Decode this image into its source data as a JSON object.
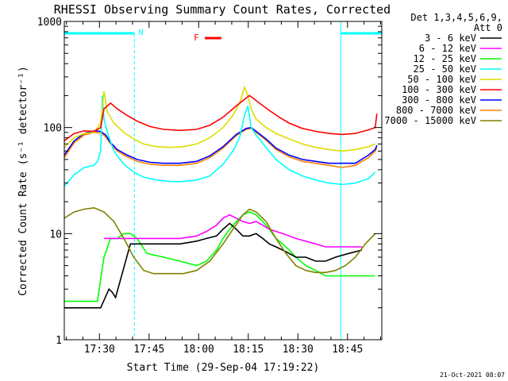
{
  "chart_data": {
    "type": "line",
    "title": "RHESSI Observing Summary Count Rates, Corrected",
    "xlabel": "Start Time (29-Sep-04 17:19:22)",
    "ylabel": "Corrected Count Rate (s⁻¹ detector⁻¹)",
    "yscale": "log",
    "ylim": [
      1,
      1000
    ],
    "xlim_minutes_from_start": [
      0,
      96
    ],
    "x_tick_labels": [
      "17:30",
      "17:45",
      "18:00",
      "18:15",
      "18:30",
      "18:45"
    ],
    "x_ticks_minutes_from_start": [
      10.63,
      25.63,
      40.63,
      55.63,
      70.63,
      85.63
    ],
    "y_tick_labels": [
      "1",
      "10",
      "100",
      "1000"
    ],
    "y_ticks": [
      1,
      10,
      100,
      1000
    ],
    "grid": false,
    "legend_position": "right",
    "legend_header": [
      "Det 1,3,4,5,6,9,",
      "Att 0"
    ],
    "footer": "21-Oct-2021 08:07",
    "flag_labels": {
      "N": "N",
      "F": "F"
    },
    "night_intervals_minutes": [
      [
        0,
        21.2
      ],
      [
        83.6,
        96
      ]
    ],
    "flare_flag_minutes": [
      42.5,
      47.5
    ],
    "series": [
      {
        "name": "3 - 6 keV",
        "color": "#000000",
        "x": [
          0,
          3,
          11,
          13.5,
          14.5,
          15.5,
          20,
          25,
          30,
          35,
          40,
          43,
          46,
          48,
          50,
          52,
          54,
          56,
          58,
          60,
          62,
          64,
          66,
          68,
          70,
          73,
          76,
          79,
          82,
          86,
          90
        ],
        "y": [
          2,
          2,
          2,
          3,
          2.8,
          2.5,
          8,
          8,
          8,
          8,
          8.5,
          9,
          9.5,
          11,
          12.5,
          11,
          9.5,
          9.5,
          10,
          9,
          8,
          7.5,
          7,
          6.5,
          6,
          6,
          5.5,
          5.5,
          6,
          6.5,
          7
        ]
      },
      {
        "name": "6 - 12 keV",
        "color": "#ff00ff",
        "x": [
          12,
          15,
          20,
          25,
          30,
          35,
          40,
          43,
          46,
          48,
          50,
          52,
          54,
          56,
          58,
          60,
          62,
          64,
          66,
          68,
          70,
          73,
          76,
          79,
          82,
          86,
          90
        ],
        "y": [
          9,
          9,
          9,
          9,
          9,
          9,
          9.5,
          10.5,
          12,
          14,
          15,
          14,
          13,
          12.5,
          13,
          12,
          11,
          10.5,
          10,
          9.5,
          9,
          8.5,
          8,
          7.5,
          7.5,
          7.5,
          7.5
        ]
      },
      {
        "name": "12 - 25 keV",
        "color": "#00ff00",
        "x": [
          0,
          3,
          10,
          12,
          14,
          16,
          18,
          20,
          22,
          25,
          30,
          35,
          40,
          43,
          46,
          48,
          50,
          52,
          54,
          56,
          58,
          60,
          62,
          64,
          66,
          68,
          70,
          73,
          76,
          79,
          82,
          86,
          90,
          94
        ],
        "y": [
          2.3,
          2.3,
          2.3,
          6,
          9,
          9,
          10,
          10,
          9,
          6.5,
          6,
          5.5,
          5,
          5.5,
          7,
          9,
          11,
          13,
          15,
          16,
          15,
          13,
          11,
          9,
          8,
          7,
          6,
          5,
          4.5,
          4,
          4,
          4,
          4,
          4
        ]
      },
      {
        "name": "25 - 50 keV",
        "color": "#00ffff",
        "x": [
          0,
          3,
          6,
          9,
          10,
          11,
          11.5,
          12,
          13,
          15,
          18,
          21,
          24,
          28,
          32,
          36,
          40,
          44,
          48,
          51,
          53,
          54.5,
          55.5,
          56.5,
          58,
          61,
          64,
          68,
          72,
          76,
          80,
          84,
          88,
          92,
          94
        ],
        "y": [
          28,
          36,
          42,
          44,
          48,
          60,
          200,
          120,
          90,
          60,
          45,
          38,
          34,
          32,
          31,
          31,
          32,
          35,
          45,
          60,
          80,
          130,
          160,
          100,
          85,
          65,
          50,
          40,
          35,
          32,
          30,
          29,
          30,
          33,
          38
        ]
      },
      {
        "name": "50 - 100 keV",
        "color": "#dddd00",
        "x": [
          0,
          3,
          6,
          9,
          11,
          12,
          13,
          15,
          18,
          21,
          24,
          28,
          32,
          36,
          40,
          44,
          48,
          51,
          53,
          54.5,
          55.5,
          56.5,
          58,
          61,
          64,
          68,
          72,
          76,
          80,
          84,
          88,
          92,
          94
        ],
        "y": [
          65,
          80,
          88,
          90,
          110,
          220,
          140,
          110,
          90,
          78,
          70,
          66,
          65,
          66,
          70,
          80,
          100,
          130,
          170,
          240,
          200,
          150,
          120,
          100,
          88,
          78,
          70,
          65,
          62,
          60,
          62,
          66,
          70
        ]
      },
      {
        "name": "100 - 300 keV",
        "color": "#ff0000",
        "x": [
          0,
          3,
          6,
          9,
          11,
          12,
          14,
          16,
          19,
          22,
          26,
          30,
          35,
          40,
          44,
          48,
          52,
          55,
          56,
          57,
          59,
          62,
          65,
          68,
          72,
          76,
          80,
          84,
          88,
          92,
          94,
          94.5
        ],
        "y": [
          75,
          88,
          93,
          92,
          100,
          150,
          170,
          150,
          130,
          115,
          102,
          96,
          94,
          96,
          105,
          125,
          160,
          190,
          200,
          190,
          170,
          145,
          125,
          110,
          98,
          92,
          88,
          86,
          88,
          95,
          100,
          135
        ]
      },
      {
        "name": "300 - 800 keV",
        "color": "#0000ff",
        "x": [
          0,
          3,
          6,
          9,
          11,
          12.5,
          14,
          16,
          19,
          22,
          26,
          30,
          35,
          40,
          44,
          48,
          52,
          55,
          56.5,
          58,
          61,
          64,
          68,
          72,
          76,
          80,
          84,
          88,
          92,
          94,
          94.5
        ],
        "y": [
          55,
          75,
          88,
          93,
          92,
          85,
          72,
          62,
          55,
          50,
          47,
          46,
          46,
          48,
          54,
          66,
          86,
          98,
          100,
          92,
          78,
          64,
          55,
          50,
          48,
          46,
          46,
          46,
          55,
          62,
          68
        ]
      },
      {
        "name": "800 - 7000 keV",
        "color": "#ff8000",
        "x": [
          0,
          3,
          6,
          9,
          11,
          12.5,
          14,
          16,
          19,
          22,
          26,
          30,
          35,
          40,
          44,
          48,
          52,
          55,
          56.5,
          58,
          61,
          64,
          68,
          72,
          76,
          80,
          84,
          88,
          92,
          94,
          94.5
        ],
        "y": [
          52,
          72,
          85,
          90,
          89,
          82,
          70,
          60,
          53,
          48,
          45,
          44,
          44,
          46,
          52,
          64,
          84,
          96,
          98,
          90,
          76,
          62,
          53,
          48,
          46,
          44,
          42,
          44,
          52,
          60,
          65
        ]
      },
      {
        "name": "7000 - 15000 keV",
        "color": "#808000",
        "x": [
          0,
          3,
          6,
          9,
          12,
          15,
          18,
          21,
          24,
          27,
          30,
          33,
          36,
          40,
          44,
          48,
          51,
          54,
          56,
          58,
          61,
          64,
          67,
          70,
          73,
          76,
          79,
          82,
          85,
          88,
          91,
          94
        ],
        "y": [
          14,
          16,
          17,
          17.5,
          16,
          13,
          9,
          6,
          4.5,
          4.2,
          4.2,
          4.2,
          4.2,
          4.5,
          5.5,
          8,
          11,
          15,
          17,
          16,
          13,
          9,
          6.5,
          5,
          4.5,
          4.3,
          4.3,
          4.5,
          5,
          6,
          8,
          10
        ]
      }
    ]
  }
}
